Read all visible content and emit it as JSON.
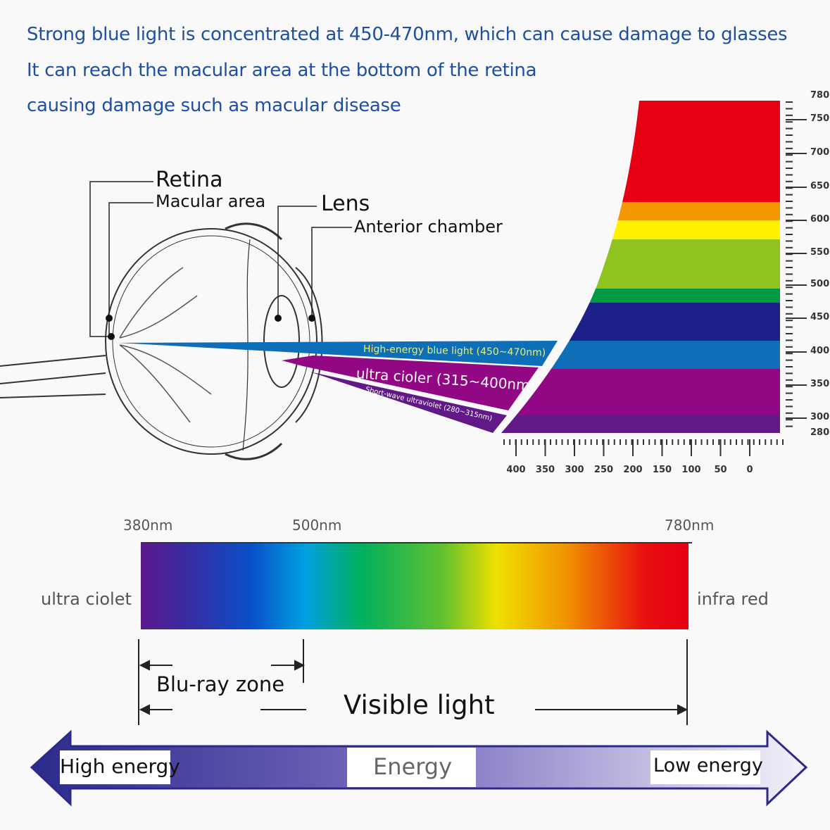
{
  "header": {
    "line1": "Strong blue light is concentrated at 450-470nm, which can cause damage to glasses",
    "line2": "It can reach the macular area at the bottom of the retina",
    "line3": "causing damage such as macular disease"
  },
  "eye_labels": {
    "retina": "Retina",
    "macular": "Macular area",
    "lens": "Lens",
    "anterior": "Anterior chamber"
  },
  "beams": {
    "blue": "High-energy blue light (450~470nm)",
    "uva": "ultra cioler (315~400nm)",
    "uvb": "Short-wave ultraviolet (280~315nm)"
  },
  "spectrum_bands": [
    {
      "color": "#e60012"
    },
    {
      "color": "#f39800"
    },
    {
      "color": "#fff100"
    },
    {
      "color": "#8fc31f"
    },
    {
      "color": "#009944"
    },
    {
      "color": "#1d2088"
    },
    {
      "color": "#0e6eb8"
    },
    {
      "color": "#920783"
    },
    {
      "color": "#601986"
    }
  ],
  "wavelength_scale": [
    "780",
    "750",
    "700",
    "650",
    "600",
    "550",
    "500",
    "450",
    "400",
    "350",
    "300",
    "280"
  ],
  "energy_scale": [
    "400",
    "350",
    "300",
    "250",
    "200",
    "150",
    "100",
    "50",
    "0"
  ],
  "visible_bar": {
    "nm_380": "380nm",
    "nm_500": "500nm",
    "nm_780": "780nm",
    "left_label": "ultra ciolet",
    "right_label": "infra red",
    "bluray": "Blu-ray zone",
    "visible": "Visible light"
  },
  "energy_arrow": {
    "high": "High energy",
    "center": "Energy",
    "low": "Low energy",
    "color": "#2b2a8c"
  }
}
